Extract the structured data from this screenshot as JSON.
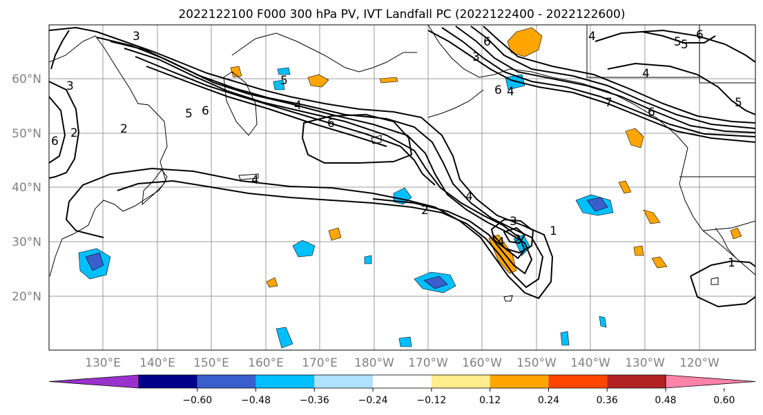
{
  "title": "2022122100 F000 300 hPa PV, IVT Landfall PC (2022122400 - 2022122600)",
  "lat_labels": [
    "60°N",
    "50°N",
    "40°N",
    "30°N",
    "20°N"
  ],
  "lon_labels": [
    "130°E",
    "140°E",
    "150°E",
    "160°E",
    "170°E",
    "180°W",
    "170°W",
    "160°W",
    "150°W",
    "140°W",
    "130°W",
    "120°W"
  ],
  "colorbar": {
    "colors": [
      "#9932cc",
      "#00008b",
      "#3a5fcd",
      "#00bfff",
      "#b0e2ff",
      "#ffffff",
      "#ffec8b",
      "#ffa500",
      "#ff4500",
      "#b22222",
      "#ff82ab"
    ],
    "tick_labels": [
      "−0.60",
      "−0.48",
      "−0.36",
      "−0.24",
      "−0.12",
      "0.12",
      "0.24",
      "0.36",
      "0.48",
      "0.60"
    ]
  },
  "contour_labels": [
    "3",
    "3",
    "2",
    "5",
    "6",
    "6",
    "2",
    "6",
    "4",
    "5",
    "6",
    "4",
    "6",
    "3",
    "5",
    "6",
    "4",
    "5",
    "4",
    "7",
    "6",
    "4",
    "4",
    "2",
    "4",
    "3",
    "1",
    "2",
    "1",
    "5"
  ]
}
